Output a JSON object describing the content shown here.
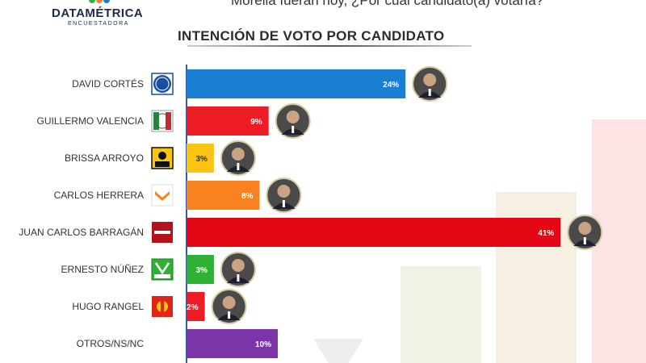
{
  "header": {
    "brand": "DATAMÉTRICA",
    "brand_sub": "ENCUESTADORA",
    "question": "Morelia fueran hoy, ¿Por cuál candidato(a) votaría?"
  },
  "chart_data": {
    "type": "bar",
    "orientation": "horizontal",
    "title": "INTENCIÓN DE VOTO POR CANDIDATO",
    "xlim": [
      0,
      45
    ],
    "categories": [
      "DAVID CORTÉS",
      "GUILLERMO VALENCIA",
      "BRISSA ARROYO",
      "CARLOS HERRERA",
      "JUAN CARLOS BARRAGÁN",
      "ERNESTO NÚÑEZ",
      "HUGO RANGEL",
      "OTROS/NS/NC"
    ],
    "values": [
      24,
      9,
      3,
      8,
      41,
      3,
      2,
      10
    ],
    "value_labels": [
      "24%",
      "9%",
      "3%",
      "8%",
      "41%",
      "3%",
      "2%",
      "10%"
    ],
    "colors": [
      "#1a7fd4",
      "#ee1c25",
      "#f9c512",
      "#f7821f",
      "#e30613",
      "#2eb135",
      "#ee1c25",
      "#7b35a8"
    ],
    "party_logos": [
      "PAN",
      "PRI",
      "PRD",
      "MC",
      "morena",
      "VERDE",
      "PT",
      ""
    ],
    "party_logo_icons": [
      "pan-logo-icon",
      "pri-logo-icon",
      "prd-logo-icon",
      "mc-logo-icon",
      "morena-logo-icon",
      "verde-logo-icon",
      "pt-logo-icon",
      ""
    ],
    "grid": false,
    "legend": "none"
  }
}
